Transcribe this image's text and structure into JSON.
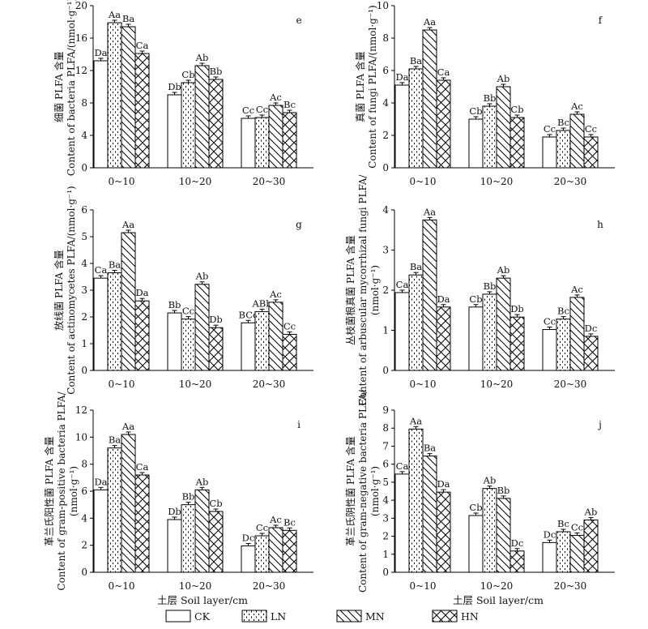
{
  "chart_data": [
    {
      "id": "e",
      "type": "bar",
      "panel_label": "e",
      "ylabel_cn": "细菌 PLFA 含量",
      "ylabel_en": "Content of bacteria PLFA/(nmol·g⁻¹)",
      "ylim": [
        0,
        20
      ],
      "yticks": [
        0,
        4,
        8,
        12,
        16,
        20
      ],
      "categories": [
        "0~10",
        "10~20",
        "20~30"
      ],
      "series": [
        {
          "name": "CK",
          "values": [
            13.2,
            9.0,
            6.1
          ],
          "labels": [
            "Da",
            "Db",
            "Cc"
          ]
        },
        {
          "name": "LN",
          "values": [
            17.9,
            10.5,
            6.2
          ],
          "labels": [
            "Aa",
            "Cb",
            "Cc"
          ]
        },
        {
          "name": "MN",
          "values": [
            17.4,
            12.6,
            7.7
          ],
          "labels": [
            "Ba",
            "Ab",
            "Ac"
          ]
        },
        {
          "name": "HN",
          "values": [
            14.1,
            10.9,
            6.8
          ],
          "labels": [
            "Ca",
            "Bb",
            "Bc"
          ]
        }
      ]
    },
    {
      "id": "f",
      "type": "bar",
      "panel_label": "f",
      "ylabel_cn": "真菌 PLFA 含量",
      "ylabel_en": "Content of fungi PLFA/(nmol·g⁻¹)",
      "ylim": [
        0,
        10
      ],
      "yticks": [
        0,
        2,
        4,
        6,
        8,
        10
      ],
      "categories": [
        "0~10",
        "10~20",
        "20~30"
      ],
      "series": [
        {
          "name": "CK",
          "values": [
            5.1,
            3.0,
            1.9
          ],
          "labels": [
            "Da",
            "Cb",
            "Cc"
          ]
        },
        {
          "name": "LN",
          "values": [
            6.1,
            3.8,
            2.3
          ],
          "labels": [
            "Ba",
            "Bb",
            "Bc"
          ]
        },
        {
          "name": "MN",
          "values": [
            8.5,
            5.0,
            3.3
          ],
          "labels": [
            "Aa",
            "Ab",
            "Ac"
          ]
        },
        {
          "name": "HN",
          "values": [
            5.4,
            3.1,
            1.9
          ],
          "labels": [
            "Ca",
            "Cb",
            "Cc"
          ]
        }
      ]
    },
    {
      "id": "g",
      "type": "bar",
      "panel_label": "g",
      "ylabel_cn": "放线菌 PLFA 含量",
      "ylabel_en": "Content of actinomycetes PLFA/(nmol·g⁻¹)",
      "ylim": [
        0,
        6
      ],
      "yticks": [
        0,
        1,
        2,
        3,
        4,
        5,
        6
      ],
      "categories": [
        "0~10",
        "10~20",
        "20~30"
      ],
      "series": [
        {
          "name": "CK",
          "values": [
            3.45,
            2.15,
            1.78
          ],
          "labels": [
            "Ca",
            "Bb",
            "BCc"
          ]
        },
        {
          "name": "LN",
          "values": [
            3.65,
            1.92,
            2.2
          ],
          "labels": [
            "Ba",
            "Cc",
            "ABb"
          ]
        },
        {
          "name": "MN",
          "values": [
            5.15,
            3.22,
            2.55
          ],
          "labels": [
            "Aa",
            "Ab",
            "Ac"
          ]
        },
        {
          "name": "HN",
          "values": [
            2.6,
            1.6,
            1.35
          ],
          "labels": [
            "Da",
            "Db",
            "Cc"
          ]
        }
      ]
    },
    {
      "id": "h",
      "type": "bar",
      "panel_label": "h",
      "ylabel_cn": "丛枝菌根真菌 PLFA 含量",
      "ylabel_en": "Content of arbuscular mycorrhizal fungi PLFA/",
      "ylabel_unit": "(nmol·g⁻¹)",
      "ylim": [
        0,
        4
      ],
      "yticks": [
        0,
        1,
        2,
        3,
        4
      ],
      "categories": [
        "0~10",
        "10~20",
        "20~30"
      ],
      "series": [
        {
          "name": "CK",
          "values": [
            1.94,
            1.58,
            1.02
          ],
          "labels": [
            "Ca",
            "Cb",
            "Cc"
          ]
        },
        {
          "name": "LN",
          "values": [
            2.38,
            1.9,
            1.28
          ],
          "labels": [
            "Ba",
            "Bb",
            "Bc"
          ]
        },
        {
          "name": "MN",
          "values": [
            3.75,
            2.3,
            1.82
          ],
          "labels": [
            "Aa",
            "Ab",
            "Ac"
          ]
        },
        {
          "name": "HN",
          "values": [
            1.58,
            1.33,
            0.85
          ],
          "labels": [
            "Da",
            "Db",
            "Dc"
          ]
        }
      ]
    },
    {
      "id": "i",
      "type": "bar",
      "panel_label": "i",
      "ylabel_cn": "革兰氏阳性菌 PLFA 含量",
      "ylabel_en": "Content of gram-positive bacteria PLFA/",
      "ylabel_unit": "(nmol·g⁻¹)",
      "ylim": [
        0,
        12
      ],
      "yticks": [
        0,
        2,
        4,
        6,
        8,
        10,
        12
      ],
      "categories": [
        "0~10",
        "10~20",
        "20~30"
      ],
      "series": [
        {
          "name": "CK",
          "values": [
            6.1,
            3.9,
            1.95
          ],
          "labels": [
            "Da",
            "Db",
            "Dc"
          ]
        },
        {
          "name": "LN",
          "values": [
            9.2,
            5.0,
            2.7
          ],
          "labels": [
            "Ba",
            "Bb",
            "Cc"
          ]
        },
        {
          "name": "MN",
          "values": [
            10.2,
            6.1,
            3.3
          ],
          "labels": [
            "Aa",
            "Ab",
            "Ac"
          ]
        },
        {
          "name": "HN",
          "values": [
            7.2,
            4.5,
            3.1
          ],
          "labels": [
            "Ca",
            "Cb",
            "Bc"
          ]
        }
      ]
    },
    {
      "id": "j",
      "type": "bar",
      "panel_label": "j",
      "ylabel_cn": "革兰氏阴性菌 PLFA 含量",
      "ylabel_en": "Content of gram-negative bacteria PLFA/",
      "ylabel_unit": "(nmol·g⁻¹)",
      "ylim": [
        0,
        9
      ],
      "yticks": [
        0,
        1,
        2,
        3,
        4,
        5,
        6,
        7,
        8,
        9
      ],
      "categories": [
        "0~10",
        "10~20",
        "20~30"
      ],
      "series": [
        {
          "name": "CK",
          "values": [
            5.45,
            3.15,
            1.65
          ],
          "labels": [
            "Ca",
            "Cb",
            "Dc"
          ]
        },
        {
          "name": "LN",
          "values": [
            7.95,
            4.65,
            2.25
          ],
          "labels": [
            "Aa",
            "Ab",
            "Bc"
          ]
        },
        {
          "name": "MN",
          "values": [
            6.45,
            4.1,
            2.05
          ],
          "labels": [
            "Ba",
            "Bb",
            "Cc"
          ]
        },
        {
          "name": "HN",
          "values": [
            4.45,
            1.18,
            2.9
          ],
          "labels": [
            "Da",
            "Dc",
            "Ab"
          ]
        }
      ]
    }
  ],
  "xlabel": "土层 Soil layer/cm",
  "legend": {
    "placement": "bottom",
    "items": [
      {
        "name": "CK",
        "pattern": "none"
      },
      {
        "name": "LN",
        "pattern": "dots"
      },
      {
        "name": "MN",
        "pattern": "diagonal"
      },
      {
        "name": "HN",
        "pattern": "crosshatch"
      }
    ]
  }
}
